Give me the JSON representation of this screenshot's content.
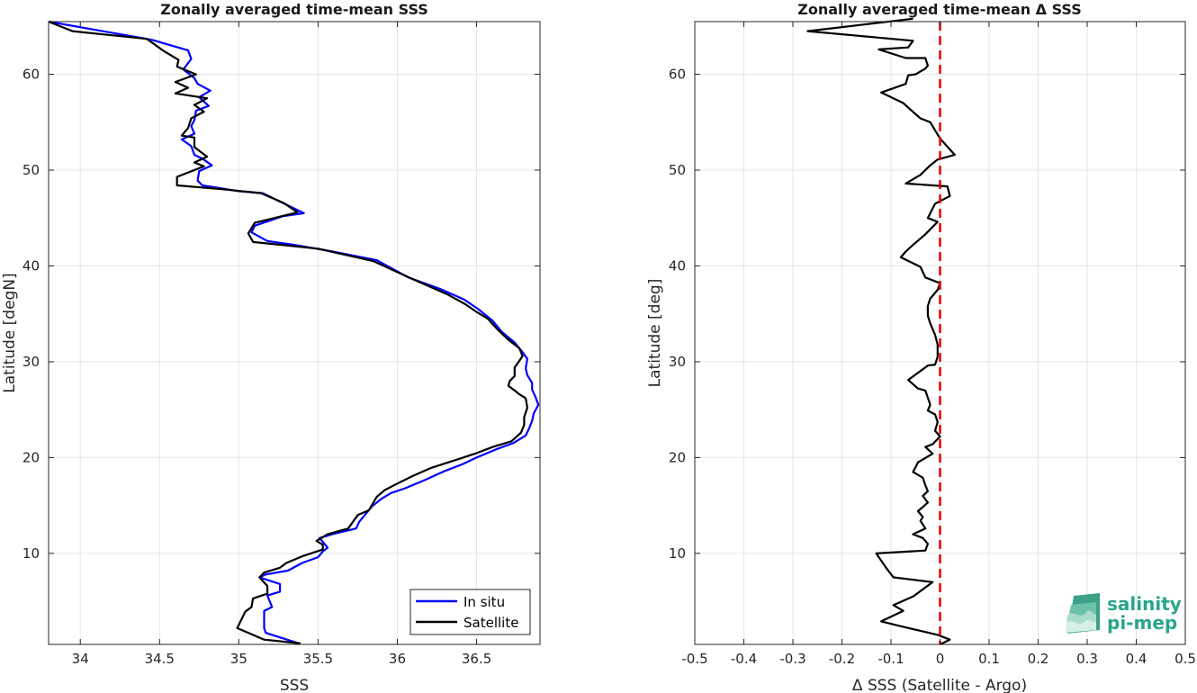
{
  "chart_data": [
    {
      "type": "line",
      "title": "Zonally averaged time-mean SSS",
      "xlabel": "SSS",
      "ylabel": "Latitude [degN]",
      "xlim": [
        33.8,
        36.9
      ],
      "ylim": [
        0.5,
        65.5
      ],
      "xticks": [
        34,
        34.5,
        35,
        35.5,
        36,
        36.5
      ],
      "xtick_labels": [
        "34",
        "34.5",
        "35",
        "35.5",
        "36",
        "36.5"
      ],
      "yticks": [
        10,
        20,
        30,
        40,
        50,
        60
      ],
      "ytick_labels": [
        "10",
        "20",
        "30",
        "40",
        "50",
        "60"
      ],
      "grid": true,
      "legend_position": "bottom-right",
      "series": [
        {
          "name": "In situ",
          "color": "#0000ff",
          "points": [
            [
              33.8,
              65.5
            ],
            [
              34.45,
              63.6
            ],
            [
              34.68,
              62.5
            ],
            [
              34.7,
              61.6
            ],
            [
              34.65,
              60.5
            ],
            [
              34.72,
              59.6
            ],
            [
              34.74,
              59.0
            ],
            [
              34.82,
              58.3
            ],
            [
              34.75,
              57.6
            ],
            [
              34.81,
              56.7
            ],
            [
              34.73,
              56.2
            ],
            [
              34.72,
              55.2
            ],
            [
              34.7,
              54.6
            ],
            [
              34.72,
              53.8
            ],
            [
              34.64,
              53.2
            ],
            [
              34.7,
              52.5
            ],
            [
              34.72,
              51.6
            ],
            [
              34.77,
              51.2
            ],
            [
              34.83,
              50.5
            ],
            [
              34.75,
              49.9
            ],
            [
              34.74,
              48.9
            ],
            [
              34.77,
              48.4
            ],
            [
              35.0,
              47.8
            ],
            [
              35.15,
              47.6
            ],
            [
              35.25,
              46.8
            ],
            [
              35.41,
              45.5
            ],
            [
              35.28,
              45.2
            ],
            [
              35.1,
              44.2
            ],
            [
              35.08,
              43.5
            ],
            [
              35.18,
              42.6
            ],
            [
              35.35,
              42.2
            ],
            [
              35.56,
              41.6
            ],
            [
              35.87,
              40.6
            ],
            [
              36.07,
              38.8
            ],
            [
              36.27,
              37.6
            ],
            [
              36.42,
              36.5
            ],
            [
              36.51,
              35.5
            ],
            [
              36.6,
              34.3
            ],
            [
              36.66,
              33.1
            ],
            [
              36.74,
              32.0
            ],
            [
              36.79,
              31.0
            ],
            [
              36.82,
              30.3
            ],
            [
              36.81,
              29.3
            ],
            [
              36.82,
              28.6
            ],
            [
              36.85,
              27.8
            ],
            [
              36.85,
              27.1
            ],
            [
              36.87,
              26.4
            ],
            [
              36.89,
              25.5
            ],
            [
              36.86,
              24.6
            ],
            [
              36.85,
              23.8
            ],
            [
              36.83,
              23.0
            ],
            [
              36.81,
              22.3
            ],
            [
              36.73,
              21.5
            ],
            [
              36.63,
              20.9
            ],
            [
              36.5,
              20.0
            ],
            [
              36.41,
              19.3
            ],
            [
              36.3,
              18.6
            ],
            [
              36.18,
              17.7
            ],
            [
              36.05,
              16.8
            ],
            [
              35.96,
              16.3
            ],
            [
              35.9,
              15.7
            ],
            [
              35.84,
              14.9
            ],
            [
              35.79,
              13.9
            ],
            [
              35.76,
              13.3
            ],
            [
              35.74,
              12.6
            ],
            [
              35.59,
              12.0
            ],
            [
              35.51,
              11.6
            ],
            [
              35.56,
              10.6
            ],
            [
              35.53,
              10.2
            ],
            [
              35.5,
              9.6
            ],
            [
              35.4,
              9.0
            ],
            [
              35.31,
              8.2
            ],
            [
              35.17,
              7.8
            ],
            [
              35.13,
              7.5
            ],
            [
              35.26,
              6.8
            ],
            [
              35.26,
              6.0
            ],
            [
              35.18,
              5.6
            ],
            [
              35.21,
              4.4
            ],
            [
              35.16,
              4.0
            ],
            [
              35.16,
              2.9
            ],
            [
              35.16,
              2.2
            ],
            [
              35.17,
              1.7
            ],
            [
              35.38,
              0.6
            ]
          ]
        },
        {
          "name": "Satellite",
          "color": "#000000",
          "points": [
            [
              33.8,
              65.5
            ],
            [
              33.95,
              64.5
            ],
            [
              34.42,
              63.7
            ],
            [
              34.52,
              62.5
            ],
            [
              34.62,
              61.5
            ],
            [
              34.61,
              60.8
            ],
            [
              34.73,
              60.0
            ],
            [
              34.6,
              59.2
            ],
            [
              34.68,
              58.6
            ],
            [
              34.6,
              58.0
            ],
            [
              34.8,
              57.5
            ],
            [
              34.72,
              56.8
            ],
            [
              34.78,
              56.1
            ],
            [
              34.7,
              55.4
            ],
            [
              34.68,
              54.4
            ],
            [
              34.64,
              53.6
            ],
            [
              34.72,
              53.4
            ],
            [
              34.72,
              52.4
            ],
            [
              34.8,
              51.4
            ],
            [
              34.72,
              50.8
            ],
            [
              34.78,
              50.4
            ],
            [
              34.61,
              49.3
            ],
            [
              34.61,
              48.4
            ],
            [
              34.9,
              48.0
            ],
            [
              35.14,
              47.6
            ],
            [
              35.28,
              46.6
            ],
            [
              35.37,
              45.6
            ],
            [
              35.1,
              44.5
            ],
            [
              35.06,
              43.4
            ],
            [
              35.09,
              42.5
            ],
            [
              35.5,
              41.8
            ],
            [
              35.85,
              40.5
            ],
            [
              36.1,
              38.6
            ],
            [
              36.32,
              37.0
            ],
            [
              36.43,
              36.0
            ],
            [
              36.5,
              35.2
            ],
            [
              36.57,
              34.5
            ],
            [
              36.63,
              33.4
            ],
            [
              36.7,
              32.3
            ],
            [
              36.77,
              31.4
            ],
            [
              36.79,
              30.6
            ],
            [
              36.77,
              30.1
            ],
            [
              36.74,
              29.4
            ],
            [
              36.74,
              28.5
            ],
            [
              36.71,
              28.0
            ],
            [
              36.7,
              27.5
            ],
            [
              36.74,
              27.0
            ],
            [
              36.77,
              26.6
            ],
            [
              36.81,
              26.2
            ],
            [
              36.82,
              25.2
            ],
            [
              36.8,
              24.2
            ],
            [
              36.8,
              23.4
            ],
            [
              36.78,
              22.6
            ],
            [
              36.72,
              21.7
            ],
            [
              36.6,
              21.1
            ],
            [
              36.49,
              20.4
            ],
            [
              36.36,
              19.7
            ],
            [
              36.21,
              18.9
            ],
            [
              36.1,
              18.1
            ],
            [
              35.99,
              17.2
            ],
            [
              35.92,
              16.6
            ],
            [
              35.87,
              15.9
            ],
            [
              35.82,
              14.5
            ],
            [
              35.75,
              14.0
            ],
            [
              35.69,
              12.6
            ],
            [
              35.56,
              12.0
            ],
            [
              35.49,
              11.3
            ],
            [
              35.53,
              10.9
            ],
            [
              35.53,
              10.4
            ],
            [
              35.4,
              9.7
            ],
            [
              35.3,
              9.0
            ],
            [
              35.26,
              8.5
            ],
            [
              35.16,
              8.0
            ],
            [
              35.13,
              7.5
            ],
            [
              35.18,
              6.6
            ],
            [
              35.18,
              5.8
            ],
            [
              35.09,
              5.3
            ],
            [
              35.08,
              4.4
            ],
            [
              35.04,
              3.9
            ],
            [
              34.99,
              2.2
            ],
            [
              35.16,
              1.0
            ],
            [
              35.39,
              0.6
            ]
          ]
        }
      ]
    },
    {
      "type": "line",
      "title": "Zonally averaged time-mean Δ SSS",
      "xlabel": "Δ SSS (Satellite - Argo)",
      "ylabel": "Latitude [deg]",
      "xlim": [
        -0.5,
        0.5
      ],
      "ylim": [
        0.5,
        65.5
      ],
      "xticks": [
        -0.5,
        -0.4,
        -0.3,
        -0.2,
        -0.1,
        0,
        0.1,
        0.2,
        0.3,
        0.4,
        0.5
      ],
      "xtick_labels": [
        "-0.5",
        "-0.4",
        "-0.3",
        "-0.2",
        "-0.1",
        "0",
        "0.1",
        "0.2",
        "0.3",
        "0.4",
        "0.5"
      ],
      "yticks": [
        10,
        20,
        30,
        40,
        50,
        60
      ],
      "ytick_labels": [
        "10",
        "20",
        "30",
        "40",
        "50",
        "60"
      ],
      "grid": true,
      "reference_line": {
        "x": 0,
        "color": "#e50000",
        "style": "dashed"
      },
      "series": [
        {
          "color": "#000000",
          "points": [
            [
              -0.055,
              65.8
            ],
            [
              -0.27,
              64.5
            ],
            [
              -0.055,
              63.5
            ],
            [
              -0.065,
              62.8
            ],
            [
              -0.125,
              62.6
            ],
            [
              -0.07,
              61.7
            ],
            [
              -0.03,
              61.7
            ],
            [
              -0.025,
              60.9
            ],
            [
              -0.03,
              60.6
            ],
            [
              -0.05,
              60.0
            ],
            [
              -0.065,
              59.9
            ],
            [
              -0.07,
              59.0
            ],
            [
              -0.12,
              58.1
            ],
            [
              -0.095,
              57.5
            ],
            [
              -0.075,
              57.0
            ],
            [
              -0.06,
              56.3
            ],
            [
              -0.04,
              55.4
            ],
            [
              -0.02,
              55.0
            ],
            [
              0.0,
              53.3
            ],
            [
              0.03,
              51.6
            ],
            [
              -0.005,
              51.1
            ],
            [
              -0.02,
              50.5
            ],
            [
              -0.04,
              49.5
            ],
            [
              -0.07,
              48.6
            ],
            [
              0.015,
              48.3
            ],
            [
              0.02,
              47.3
            ],
            [
              -0.01,
              46.5
            ],
            [
              -0.025,
              45.0
            ],
            [
              -0.005,
              44.6
            ],
            [
              -0.03,
              43.3
            ],
            [
              -0.055,
              42.2
            ],
            [
              -0.07,
              41.5
            ],
            [
              -0.08,
              40.9
            ],
            [
              -0.04,
              39.9
            ],
            [
              -0.03,
              38.8
            ],
            [
              0.0,
              38.2
            ],
            [
              -0.005,
              37.5
            ],
            [
              -0.02,
              36.6
            ],
            [
              -0.025,
              35.8
            ],
            [
              -0.025,
              34.8
            ],
            [
              -0.02,
              34.0
            ],
            [
              -0.01,
              32.8
            ],
            [
              -0.005,
              31.8
            ],
            [
              -0.005,
              30.5
            ],
            [
              -0.01,
              29.7
            ],
            [
              -0.025,
              29.6
            ],
            [
              -0.065,
              28.1
            ],
            [
              -0.045,
              27.2
            ],
            [
              -0.03,
              27.0
            ],
            [
              -0.02,
              25.5
            ],
            [
              -0.025,
              24.9
            ],
            [
              -0.01,
              24.5
            ],
            [
              -0.005,
              23.7
            ],
            [
              -0.01,
              22.8
            ],
            [
              0.0,
              22.2
            ],
            [
              -0.015,
              21.4
            ],
            [
              -0.03,
              21.1
            ],
            [
              -0.015,
              20.4
            ],
            [
              -0.045,
              19.5
            ],
            [
              -0.055,
              18.5
            ],
            [
              -0.035,
              17.9
            ],
            [
              -0.03,
              17.1
            ],
            [
              -0.025,
              16.5
            ],
            [
              -0.035,
              16.0
            ],
            [
              -0.025,
              15.3
            ],
            [
              -0.045,
              14.4
            ],
            [
              -0.035,
              13.8
            ],
            [
              -0.04,
              13.4
            ],
            [
              -0.03,
              12.6
            ],
            [
              -0.055,
              12.0
            ],
            [
              -0.035,
              11.6
            ],
            [
              -0.025,
              11.0
            ],
            [
              -0.03,
              10.3
            ],
            [
              -0.13,
              10.0
            ],
            [
              -0.11,
              8.5
            ],
            [
              -0.095,
              7.5
            ],
            [
              -0.015,
              7.0
            ],
            [
              -0.055,
              5.5
            ],
            [
              -0.095,
              4.6
            ],
            [
              -0.075,
              4.0
            ],
            [
              -0.12,
              2.9
            ],
            [
              -0.08,
              2.4
            ],
            [
              -0.03,
              1.8
            ],
            [
              -0.005,
              1.5
            ],
            [
              0.02,
              1.0
            ],
            [
              0.0,
              0.5
            ]
          ]
        }
      ]
    }
  ],
  "logo": {
    "line1": "salinity",
    "line2": "pi-mep"
  }
}
